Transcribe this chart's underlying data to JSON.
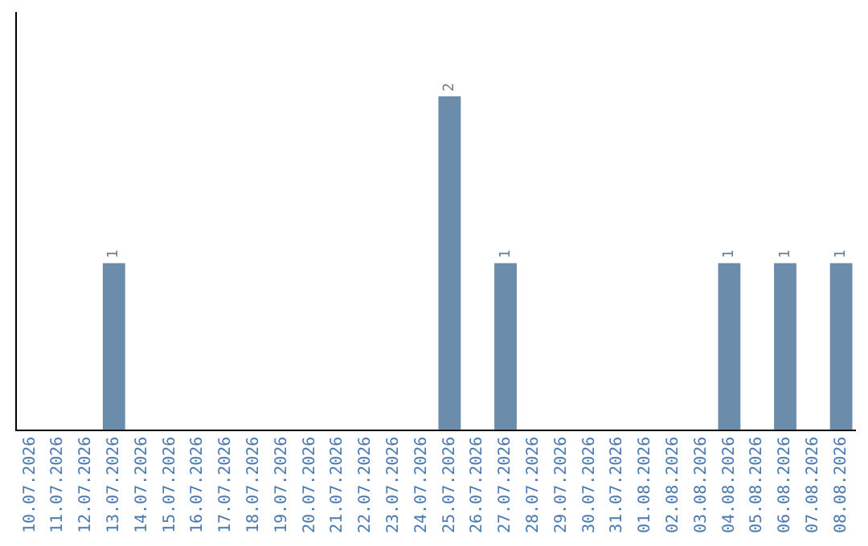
{
  "chart_data": {
    "type": "bar",
    "categories": [
      "10.07.2026",
      "11.07.2026",
      "12.07.2026",
      "13.07.2026",
      "14.07.2026",
      "15.07.2026",
      "16.07.2026",
      "17.07.2026",
      "18.07.2026",
      "19.07.2026",
      "20.07.2026",
      "21.07.2026",
      "22.07.2026",
      "23.07.2026",
      "24.07.2026",
      "25.07.2026",
      "26.07.2026",
      "27.07.2026",
      "28.07.2026",
      "29.07.2026",
      "30.07.2026",
      "31.07.2026",
      "01.08.2026",
      "02.08.2026",
      "03.08.2026",
      "04.08.2026",
      "05.08.2026",
      "06.08.2026",
      "07.08.2026",
      "08.08.2026"
    ],
    "values": [
      0,
      0,
      0,
      1,
      0,
      0,
      0,
      0,
      0,
      0,
      0,
      0,
      0,
      0,
      0,
      2,
      0,
      1,
      0,
      0,
      0,
      0,
      0,
      0,
      0,
      1,
      0,
      1,
      0,
      1
    ],
    "value_labels": [
      null,
      null,
      null,
      "1",
      null,
      null,
      null,
      null,
      null,
      null,
      null,
      null,
      null,
      null,
      null,
      "2",
      null,
      "1",
      null,
      null,
      null,
      null,
      null,
      null,
      null,
      "1",
      null,
      "1",
      null,
      "1"
    ],
    "color": "#6b8cab",
    "grid": false,
    "legend": false
  }
}
